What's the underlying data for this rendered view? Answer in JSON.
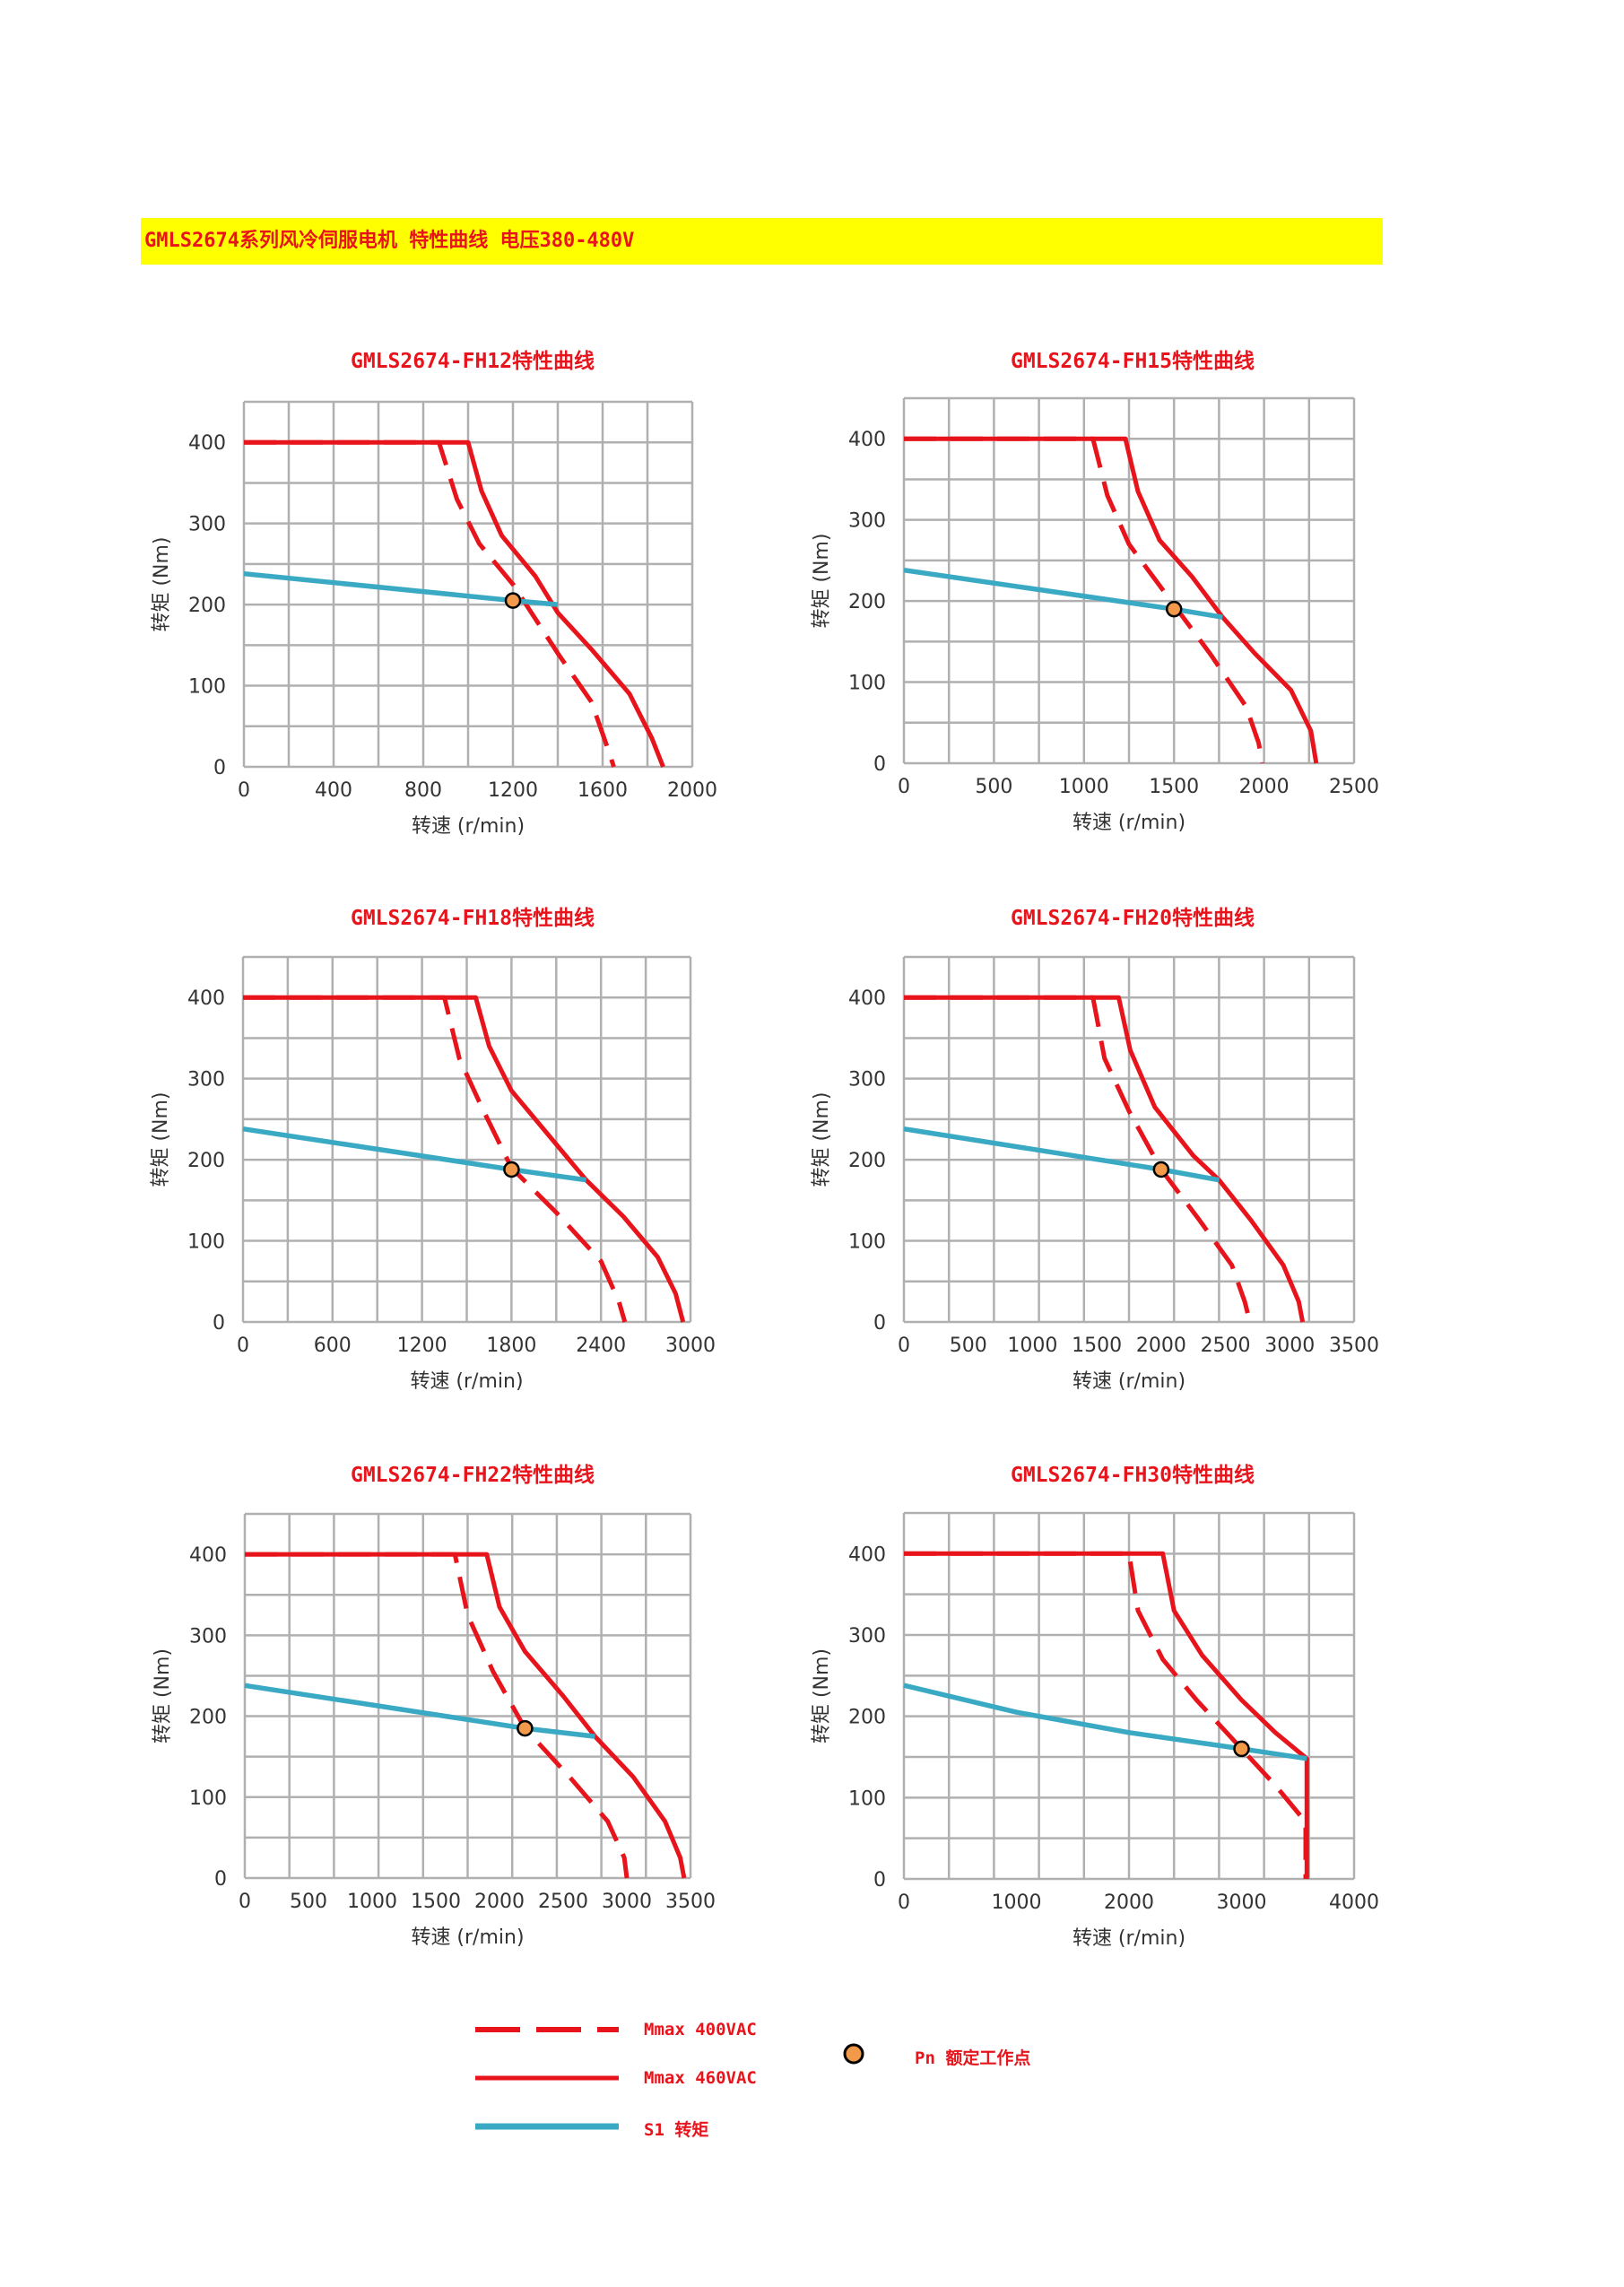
{
  "page": {
    "banner": "GMLS2674系列风冷伺服电机 特性曲线 电压380-480V"
  },
  "colors": {
    "red": "#e8141c",
    "blue": "#3aa9c4",
    "grid": "#b0b0b0",
    "marker": "#f39a4a"
  },
  "legend": {
    "mmax_400": "Mmax 400VAC",
    "mmax_460": "Mmax 460VAC",
    "s1": "S1 转矩",
    "pn": "Pn 额定工作点"
  },
  "chart_data": [
    {
      "type": "line",
      "title": "GMLS2674-FH12特性曲线",
      "xlabel": "转速 (r/min)",
      "ylabel": "转矩 (Nm)",
      "xlim": [
        0,
        2000
      ],
      "ylim": [
        0,
        400
      ],
      "xticks": [
        0,
        400,
        800,
        1200,
        1600,
        2000
      ],
      "yticks": [
        0,
        100,
        200,
        300,
        400
      ],
      "grid": true,
      "series": [
        {
          "name": "Mmax 400VAC",
          "style": "dashed",
          "color": "#e8141c",
          "points": [
            [
              0,
              400
            ],
            [
              870,
              400
            ],
            [
              950,
              330
            ],
            [
              1050,
              275
            ],
            [
              1200,
              225
            ],
            [
              1400,
              140
            ],
            [
              1550,
              80
            ],
            [
              1620,
              25
            ],
            [
              1650,
              0
            ]
          ]
        },
        {
          "name": "Mmax 460VAC",
          "style": "solid",
          "color": "#e8141c",
          "points": [
            [
              0,
              400
            ],
            [
              1000,
              400
            ],
            [
              1060,
              340
            ],
            [
              1150,
              285
            ],
            [
              1300,
              235
            ],
            [
              1400,
              190
            ],
            [
              1550,
              145
            ],
            [
              1720,
              90
            ],
            [
              1820,
              35
            ],
            [
              1870,
              0
            ]
          ]
        },
        {
          "name": "S1 转矩",
          "style": "solid",
          "color": "#3aa9c4",
          "points": [
            [
              0,
              238
            ],
            [
              1200,
              205
            ],
            [
              1400,
              200
            ]
          ]
        }
      ],
      "rated_point": [
        1200,
        205
      ]
    },
    {
      "type": "line",
      "title": "GMLS2674-FH15特性曲线",
      "xlabel": "转速 (r/min)",
      "ylabel": "转矩 (Nm)",
      "xlim": [
        0,
        2500
      ],
      "ylim": [
        0,
        400
      ],
      "xticks": [
        0,
        500,
        1000,
        1500,
        2000,
        2500
      ],
      "yticks": [
        0,
        100,
        200,
        300,
        400
      ],
      "grid": true,
      "series": [
        {
          "name": "Mmax 400VAC",
          "style": "dashed",
          "color": "#e8141c",
          "points": [
            [
              0,
              400
            ],
            [
              1050,
              400
            ],
            [
              1130,
              330
            ],
            [
              1250,
              270
            ],
            [
              1500,
              195
            ],
            [
              1700,
              135
            ],
            [
              1900,
              70
            ],
            [
              1970,
              25
            ],
            [
              1990,
              0
            ]
          ]
        },
        {
          "name": "Mmax 460VAC",
          "style": "solid",
          "color": "#e8141c",
          "points": [
            [
              0,
              400
            ],
            [
              1230,
              400
            ],
            [
              1300,
              335
            ],
            [
              1420,
              275
            ],
            [
              1600,
              230
            ],
            [
              1770,
              180
            ],
            [
              1950,
              135
            ],
            [
              2150,
              90
            ],
            [
              2260,
              40
            ],
            [
              2290,
              0
            ]
          ]
        },
        {
          "name": "S1 转矩",
          "style": "solid",
          "color": "#3aa9c4",
          "points": [
            [
              0,
              238
            ],
            [
              1500,
              190
            ],
            [
              1770,
              180
            ]
          ]
        }
      ],
      "rated_point": [
        1500,
        190
      ]
    },
    {
      "type": "line",
      "title": "GMLS2674-FH18特性曲线",
      "xlabel": "转速 (r/min)",
      "ylabel": "转矩 (Nm)",
      "xlim": [
        0,
        3000
      ],
      "ylim": [
        0,
        400
      ],
      "xticks": [
        0,
        600,
        1200,
        1800,
        2400,
        3000
      ],
      "yticks": [
        0,
        100,
        200,
        300,
        400
      ],
      "grid": true,
      "series": [
        {
          "name": "Mmax 400VAC",
          "style": "dashed",
          "color": "#e8141c",
          "points": [
            [
              0,
              400
            ],
            [
              1350,
              400
            ],
            [
              1450,
              325
            ],
            [
              1600,
              265
            ],
            [
              1800,
              190
            ],
            [
              2100,
              135
            ],
            [
              2400,
              75
            ],
            [
              2520,
              25
            ],
            [
              2560,
              0
            ]
          ]
        },
        {
          "name": "Mmax 460VAC",
          "style": "solid",
          "color": "#e8141c",
          "points": [
            [
              0,
              400
            ],
            [
              1560,
              400
            ],
            [
              1650,
              340
            ],
            [
              1800,
              285
            ],
            [
              2050,
              230
            ],
            [
              2300,
              175
            ],
            [
              2550,
              130
            ],
            [
              2780,
              80
            ],
            [
              2900,
              35
            ],
            [
              2950,
              0
            ]
          ]
        },
        {
          "name": "S1 转矩",
          "style": "solid",
          "color": "#3aa9c4",
          "points": [
            [
              0,
              238
            ],
            [
              1800,
              188
            ],
            [
              2300,
              175
            ]
          ]
        }
      ],
      "rated_point": [
        1800,
        188
      ]
    },
    {
      "type": "line",
      "title": "GMLS2674-FH20特性曲线",
      "xlabel": "转速 (r/min)",
      "ylabel": "转矩 (Nm)",
      "xlim": [
        0,
        3500
      ],
      "ylim": [
        0,
        400
      ],
      "xticks": [
        0,
        500,
        1000,
        1500,
        2000,
        2500,
        3000,
        3500
      ],
      "yticks": [
        0,
        100,
        200,
        300,
        400
      ],
      "grid": true,
      "series": [
        {
          "name": "Mmax 400VAC",
          "style": "dashed",
          "color": "#e8141c",
          "points": [
            [
              0,
              400
            ],
            [
              1470,
              400
            ],
            [
              1560,
              325
            ],
            [
              1750,
              260
            ],
            [
              2000,
              188
            ],
            [
              2300,
              125
            ],
            [
              2550,
              70
            ],
            [
              2650,
              25
            ],
            [
              2690,
              0
            ]
          ]
        },
        {
          "name": "Mmax 460VAC",
          "style": "solid",
          "color": "#e8141c",
          "points": [
            [
              0,
              400
            ],
            [
              1670,
              400
            ],
            [
              1760,
              335
            ],
            [
              1950,
              265
            ],
            [
              2250,
              205
            ],
            [
              2450,
              175
            ],
            [
              2700,
              125
            ],
            [
              2950,
              70
            ],
            [
              3070,
              25
            ],
            [
              3100,
              0
            ]
          ]
        },
        {
          "name": "S1 转矩",
          "style": "solid",
          "color": "#3aa9c4",
          "points": [
            [
              0,
              238
            ],
            [
              2000,
              188
            ],
            [
              2450,
              175
            ]
          ]
        }
      ],
      "rated_point": [
        2000,
        188
      ]
    },
    {
      "type": "line",
      "title": "GMLS2674-FH22特性曲线",
      "xlabel": "转速 (r/min)",
      "ylabel": "转矩 (Nm)",
      "xlim": [
        0,
        3500
      ],
      "ylim": [
        0,
        400
      ],
      "xticks": [
        0,
        500,
        1000,
        1500,
        2000,
        2500,
        3000,
        3500
      ],
      "yticks": [
        0,
        100,
        200,
        300,
        400
      ],
      "grid": true,
      "series": [
        {
          "name": "Mmax 400VAC",
          "style": "dashed",
          "color": "#e8141c",
          "points": [
            [
              0,
              400
            ],
            [
              1650,
              400
            ],
            [
              1750,
              325
            ],
            [
              1950,
              255
            ],
            [
              2200,
              185
            ],
            [
              2550,
              125
            ],
            [
              2850,
              70
            ],
            [
              2980,
              25
            ],
            [
              3000,
              0
            ]
          ]
        },
        {
          "name": "Mmax 460VAC",
          "style": "solid",
          "color": "#e8141c",
          "points": [
            [
              0,
              400
            ],
            [
              1900,
              400
            ],
            [
              2000,
              335
            ],
            [
              2200,
              280
            ],
            [
              2500,
              225
            ],
            [
              2750,
              175
            ],
            [
              3050,
              125
            ],
            [
              3300,
              70
            ],
            [
              3420,
              25
            ],
            [
              3450,
              0
            ]
          ]
        },
        {
          "name": "S1 转矩",
          "style": "solid",
          "color": "#3aa9c4",
          "points": [
            [
              0,
              238
            ],
            [
              2200,
              185
            ],
            [
              2750,
              175
            ]
          ]
        }
      ],
      "rated_point": [
        2200,
        185
      ]
    },
    {
      "type": "line",
      "title": "GMLS2674-FH30特性曲线",
      "xlabel": "转速 (r/min)",
      "ylabel": "转矩 (Nm)",
      "xlim": [
        0,
        4000
      ],
      "ylim": [
        0,
        400
      ],
      "xticks": [
        0,
        1000,
        2000,
        3000,
        4000
      ],
      "yticks": [
        0,
        100,
        200,
        300,
        400
      ],
      "grid": true,
      "series": [
        {
          "name": "Mmax 400VAC",
          "style": "dashed",
          "color": "#e8141c",
          "points": [
            [
              0,
              400
            ],
            [
              2000,
              400
            ],
            [
              2080,
              330
            ],
            [
              2300,
              270
            ],
            [
              2600,
              220
            ],
            [
              3000,
              160
            ],
            [
              3300,
              115
            ],
            [
              3570,
              70
            ],
            [
              3570,
              0
            ]
          ]
        },
        {
          "name": "Mmax 460VAC",
          "style": "solid",
          "color": "#e8141c",
          "points": [
            [
              0,
              400
            ],
            [
              2300,
              400
            ],
            [
              2400,
              330
            ],
            [
              2650,
              275
            ],
            [
              3000,
              220
            ],
            [
              3300,
              180
            ],
            [
              3580,
              148
            ],
            [
              3580,
              0
            ]
          ]
        },
        {
          "name": "S1 转矩",
          "style": "solid",
          "color": "#3aa9c4",
          "points": [
            [
              0,
              238
            ],
            [
              1000,
              205
            ],
            [
              2000,
              180
            ],
            [
              3000,
              160
            ],
            [
              3580,
              148
            ]
          ]
        }
      ],
      "rated_point": [
        3000,
        160
      ]
    }
  ]
}
